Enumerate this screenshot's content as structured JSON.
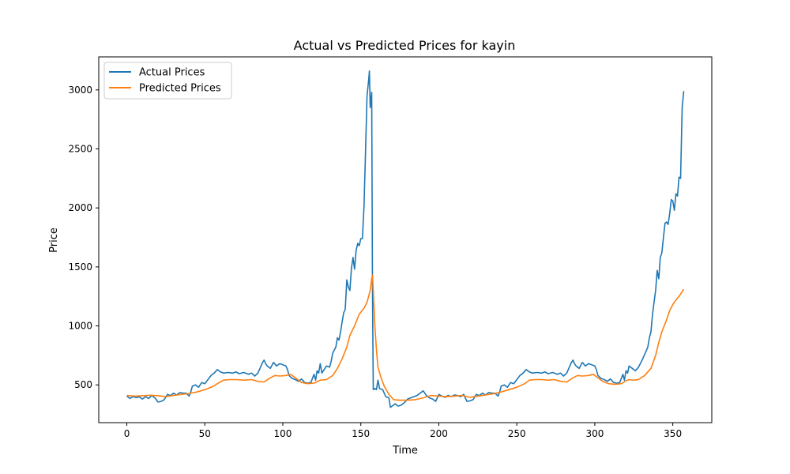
{
  "chart_data": {
    "type": "line",
    "title": "Actual vs Predicted Prices for kayin",
    "xlabel": "Time",
    "ylabel": "Price",
    "xlim": [
      -18,
      375
    ],
    "ylim": [
      180,
      3280
    ],
    "xticks": [
      0,
      50,
      100,
      150,
      200,
      250,
      300,
      350
    ],
    "yticks": [
      500,
      1000,
      1500,
      2000,
      2500,
      3000
    ],
    "grid": false,
    "legend_position": "top-left",
    "series": [
      {
        "name": "Actual Prices",
        "color": "#1f77b4",
        "points": [
          [
            0,
            405
          ],
          [
            2,
            385
          ],
          [
            4,
            400
          ],
          [
            6,
            392
          ],
          [
            8,
            398
          ],
          [
            10,
            380
          ],
          [
            12,
            400
          ],
          [
            14,
            385
          ],
          [
            16,
            410
          ],
          [
            18,
            390
          ],
          [
            20,
            355
          ],
          [
            22,
            360
          ],
          [
            24,
            375
          ],
          [
            26,
            420
          ],
          [
            28,
            410
          ],
          [
            30,
            430
          ],
          [
            32,
            415
          ],
          [
            34,
            435
          ],
          [
            36,
            430
          ],
          [
            38,
            430
          ],
          [
            40,
            405
          ],
          [
            41,
            440
          ],
          [
            42,
            490
          ],
          [
            44,
            500
          ],
          [
            46,
            480
          ],
          [
            48,
            520
          ],
          [
            50,
            510
          ],
          [
            52,
            545
          ],
          [
            54,
            580
          ],
          [
            56,
            600
          ],
          [
            58,
            630
          ],
          [
            60,
            610
          ],
          [
            62,
            600
          ],
          [
            65,
            605
          ],
          [
            68,
            600
          ],
          [
            70,
            610
          ],
          [
            72,
            595
          ],
          [
            75,
            605
          ],
          [
            78,
            590
          ],
          [
            80,
            600
          ],
          [
            82,
            575
          ],
          [
            84,
            600
          ],
          [
            86,
            660
          ],
          [
            87,
            690
          ],
          [
            88,
            710
          ],
          [
            89,
            680
          ],
          [
            90,
            660
          ],
          [
            92,
            640
          ],
          [
            94,
            690
          ],
          [
            96,
            660
          ],
          [
            98,
            680
          ],
          [
            100,
            670
          ],
          [
            102,
            660
          ],
          [
            103,
            630
          ],
          [
            104,
            580
          ],
          [
            106,
            555
          ],
          [
            108,
            545
          ],
          [
            110,
            530
          ],
          [
            112,
            550
          ],
          [
            114,
            520
          ],
          [
            116,
            515
          ],
          [
            118,
            520
          ],
          [
            120,
            590
          ],
          [
            121,
            540
          ],
          [
            122,
            620
          ],
          [
            123,
            600
          ],
          [
            124,
            680
          ],
          [
            125,
            600
          ],
          [
            126,
            620
          ],
          [
            128,
            660
          ],
          [
            130,
            650
          ],
          [
            131,
            700
          ],
          [
            132,
            770
          ],
          [
            134,
            820
          ],
          [
            135,
            900
          ],
          [
            136,
            880
          ],
          [
            137,
            950
          ],
          [
            138,
            1030
          ],
          [
            139,
            1110
          ],
          [
            140,
            1140
          ],
          [
            141,
            1390
          ],
          [
            142,
            1330
          ],
          [
            143,
            1300
          ],
          [
            144,
            1490
          ],
          [
            145,
            1580
          ],
          [
            146,
            1480
          ],
          [
            147,
            1640
          ],
          [
            148,
            1700
          ],
          [
            149,
            1680
          ],
          [
            150,
            1740
          ],
          [
            151,
            1740
          ],
          [
            152,
            2000
          ],
          [
            153,
            2450
          ],
          [
            154,
            2950
          ],
          [
            155,
            3080
          ],
          [
            155.5,
            3160
          ],
          [
            156,
            2850
          ],
          [
            157,
            2980
          ],
          [
            157.5,
            1300
          ],
          [
            158,
            460
          ],
          [
            159,
            470
          ],
          [
            160,
            460
          ],
          [
            161,
            540
          ],
          [
            162,
            470
          ],
          [
            164,
            460
          ],
          [
            166,
            400
          ],
          [
            168,
            390
          ],
          [
            169,
            310
          ],
          [
            170,
            320
          ],
          [
            172,
            340
          ],
          [
            174,
            320
          ],
          [
            176,
            330
          ],
          [
            178,
            350
          ],
          [
            180,
            380
          ],
          [
            182,
            390
          ],
          [
            184,
            400
          ],
          [
            186,
            410
          ],
          [
            188,
            430
          ],
          [
            190,
            450
          ],
          [
            192,
            410
          ],
          [
            194,
            390
          ],
          [
            196,
            380
          ],
          [
            198,
            360
          ],
          [
            200,
            420
          ],
          [
            202,
            405
          ],
          [
            204,
            395
          ],
          [
            206,
            410
          ],
          [
            208,
            400
          ],
          [
            210,
            415
          ],
          [
            212,
            410
          ],
          [
            214,
            400
          ],
          [
            216,
            420
          ],
          [
            218,
            360
          ],
          [
            220,
            365
          ],
          [
            222,
            375
          ],
          [
            224,
            420
          ],
          [
            226,
            410
          ],
          [
            228,
            430
          ],
          [
            230,
            415
          ],
          [
            232,
            435
          ],
          [
            234,
            430
          ],
          [
            236,
            430
          ],
          [
            238,
            405
          ],
          [
            239,
            440
          ],
          [
            240,
            490
          ],
          [
            242,
            500
          ],
          [
            244,
            480
          ],
          [
            246,
            520
          ],
          [
            248,
            510
          ],
          [
            250,
            545
          ],
          [
            252,
            580
          ],
          [
            254,
            600
          ],
          [
            256,
            630
          ],
          [
            258,
            610
          ],
          [
            260,
            600
          ],
          [
            263,
            605
          ],
          [
            266,
            600
          ],
          [
            268,
            610
          ],
          [
            270,
            595
          ],
          [
            273,
            605
          ],
          [
            276,
            590
          ],
          [
            278,
            600
          ],
          [
            280,
            575
          ],
          [
            282,
            600
          ],
          [
            284,
            660
          ],
          [
            285,
            690
          ],
          [
            286,
            710
          ],
          [
            287,
            680
          ],
          [
            288,
            660
          ],
          [
            290,
            640
          ],
          [
            292,
            690
          ],
          [
            294,
            660
          ],
          [
            296,
            680
          ],
          [
            298,
            670
          ],
          [
            300,
            660
          ],
          [
            301,
            630
          ],
          [
            302,
            580
          ],
          [
            304,
            555
          ],
          [
            306,
            545
          ],
          [
            308,
            530
          ],
          [
            310,
            550
          ],
          [
            312,
            520
          ],
          [
            314,
            515
          ],
          [
            316,
            520
          ],
          [
            318,
            590
          ],
          [
            319,
            540
          ],
          [
            320,
            620
          ],
          [
            321,
            600
          ],
          [
            322,
            660
          ],
          [
            324,
            640
          ],
          [
            326,
            620
          ],
          [
            328,
            650
          ],
          [
            330,
            700
          ],
          [
            332,
            760
          ],
          [
            334,
            820
          ],
          [
            335,
            900
          ],
          [
            336,
            950
          ],
          [
            337,
            1100
          ],
          [
            338,
            1200
          ],
          [
            339,
            1300
          ],
          [
            340,
            1470
          ],
          [
            341,
            1400
          ],
          [
            342,
            1580
          ],
          [
            343,
            1620
          ],
          [
            344,
            1750
          ],
          [
            345,
            1870
          ],
          [
            346,
            1880
          ],
          [
            347,
            1860
          ],
          [
            348,
            1950
          ],
          [
            349,
            2070
          ],
          [
            350,
            2060
          ],
          [
            351,
            1980
          ],
          [
            352,
            2120
          ],
          [
            353,
            2100
          ],
          [
            354,
            2260
          ],
          [
            355,
            2250
          ],
          [
            356,
            2850
          ],
          [
            357,
            2990
          ]
        ]
      },
      {
        "name": "Predicted Prices",
        "color": "#ff7f0e",
        "points": [
          [
            0,
            410
          ],
          [
            5,
            405
          ],
          [
            10,
            408
          ],
          [
            15,
            412
          ],
          [
            20,
            408
          ],
          [
            25,
            400
          ],
          [
            30,
            410
          ],
          [
            35,
            420
          ],
          [
            40,
            428
          ],
          [
            45,
            440
          ],
          [
            50,
            460
          ],
          [
            55,
            485
          ],
          [
            58,
            510
          ],
          [
            62,
            540
          ],
          [
            66,
            545
          ],
          [
            70,
            545
          ],
          [
            75,
            540
          ],
          [
            80,
            545
          ],
          [
            84,
            530
          ],
          [
            88,
            525
          ],
          [
            92,
            560
          ],
          [
            95,
            580
          ],
          [
            98,
            575
          ],
          [
            102,
            580
          ],
          [
            105,
            590
          ],
          [
            108,
            560
          ],
          [
            112,
            520
          ],
          [
            116,
            510
          ],
          [
            120,
            515
          ],
          [
            124,
            540
          ],
          [
            128,
            545
          ],
          [
            132,
            580
          ],
          [
            135,
            640
          ],
          [
            138,
            720
          ],
          [
            141,
            820
          ],
          [
            143,
            920
          ],
          [
            146,
            1000
          ],
          [
            149,
            1100
          ],
          [
            152,
            1150
          ],
          [
            154,
            1200
          ],
          [
            156,
            1300
          ],
          [
            157,
            1400
          ],
          [
            157.5,
            1430
          ],
          [
            158,
            1300
          ],
          [
            159,
            1000
          ],
          [
            160,
            800
          ],
          [
            161,
            650
          ],
          [
            163,
            560
          ],
          [
            165,
            490
          ],
          [
            168,
            420
          ],
          [
            171,
            375
          ],
          [
            175,
            370
          ],
          [
            180,
            370
          ],
          [
            185,
            375
          ],
          [
            190,
            390
          ],
          [
            195,
            410
          ],
          [
            200,
            405
          ],
          [
            205,
            400
          ],
          [
            210,
            405
          ],
          [
            215,
            410
          ],
          [
            220,
            395
          ],
          [
            225,
            405
          ],
          [
            230,
            415
          ],
          [
            235,
            425
          ],
          [
            240,
            440
          ],
          [
            245,
            460
          ],
          [
            250,
            480
          ],
          [
            255,
            510
          ],
          [
            258,
            540
          ],
          [
            262,
            545
          ],
          [
            266,
            545
          ],
          [
            270,
            540
          ],
          [
            274,
            545
          ],
          [
            278,
            530
          ],
          [
            282,
            525
          ],
          [
            286,
            560
          ],
          [
            289,
            580
          ],
          [
            292,
            575
          ],
          [
            296,
            580
          ],
          [
            299,
            590
          ],
          [
            302,
            560
          ],
          [
            305,
            530
          ],
          [
            309,
            510
          ],
          [
            313,
            505
          ],
          [
            317,
            510
          ],
          [
            320,
            535
          ],
          [
            322,
            545
          ],
          [
            325,
            540
          ],
          [
            328,
            545
          ],
          [
            332,
            580
          ],
          [
            336,
            640
          ],
          [
            339,
            750
          ],
          [
            341,
            860
          ],
          [
            343,
            950
          ],
          [
            346,
            1050
          ],
          [
            348,
            1130
          ],
          [
            350,
            1180
          ],
          [
            352,
            1220
          ],
          [
            354,
            1250
          ],
          [
            357,
            1310
          ]
        ]
      }
    ]
  }
}
